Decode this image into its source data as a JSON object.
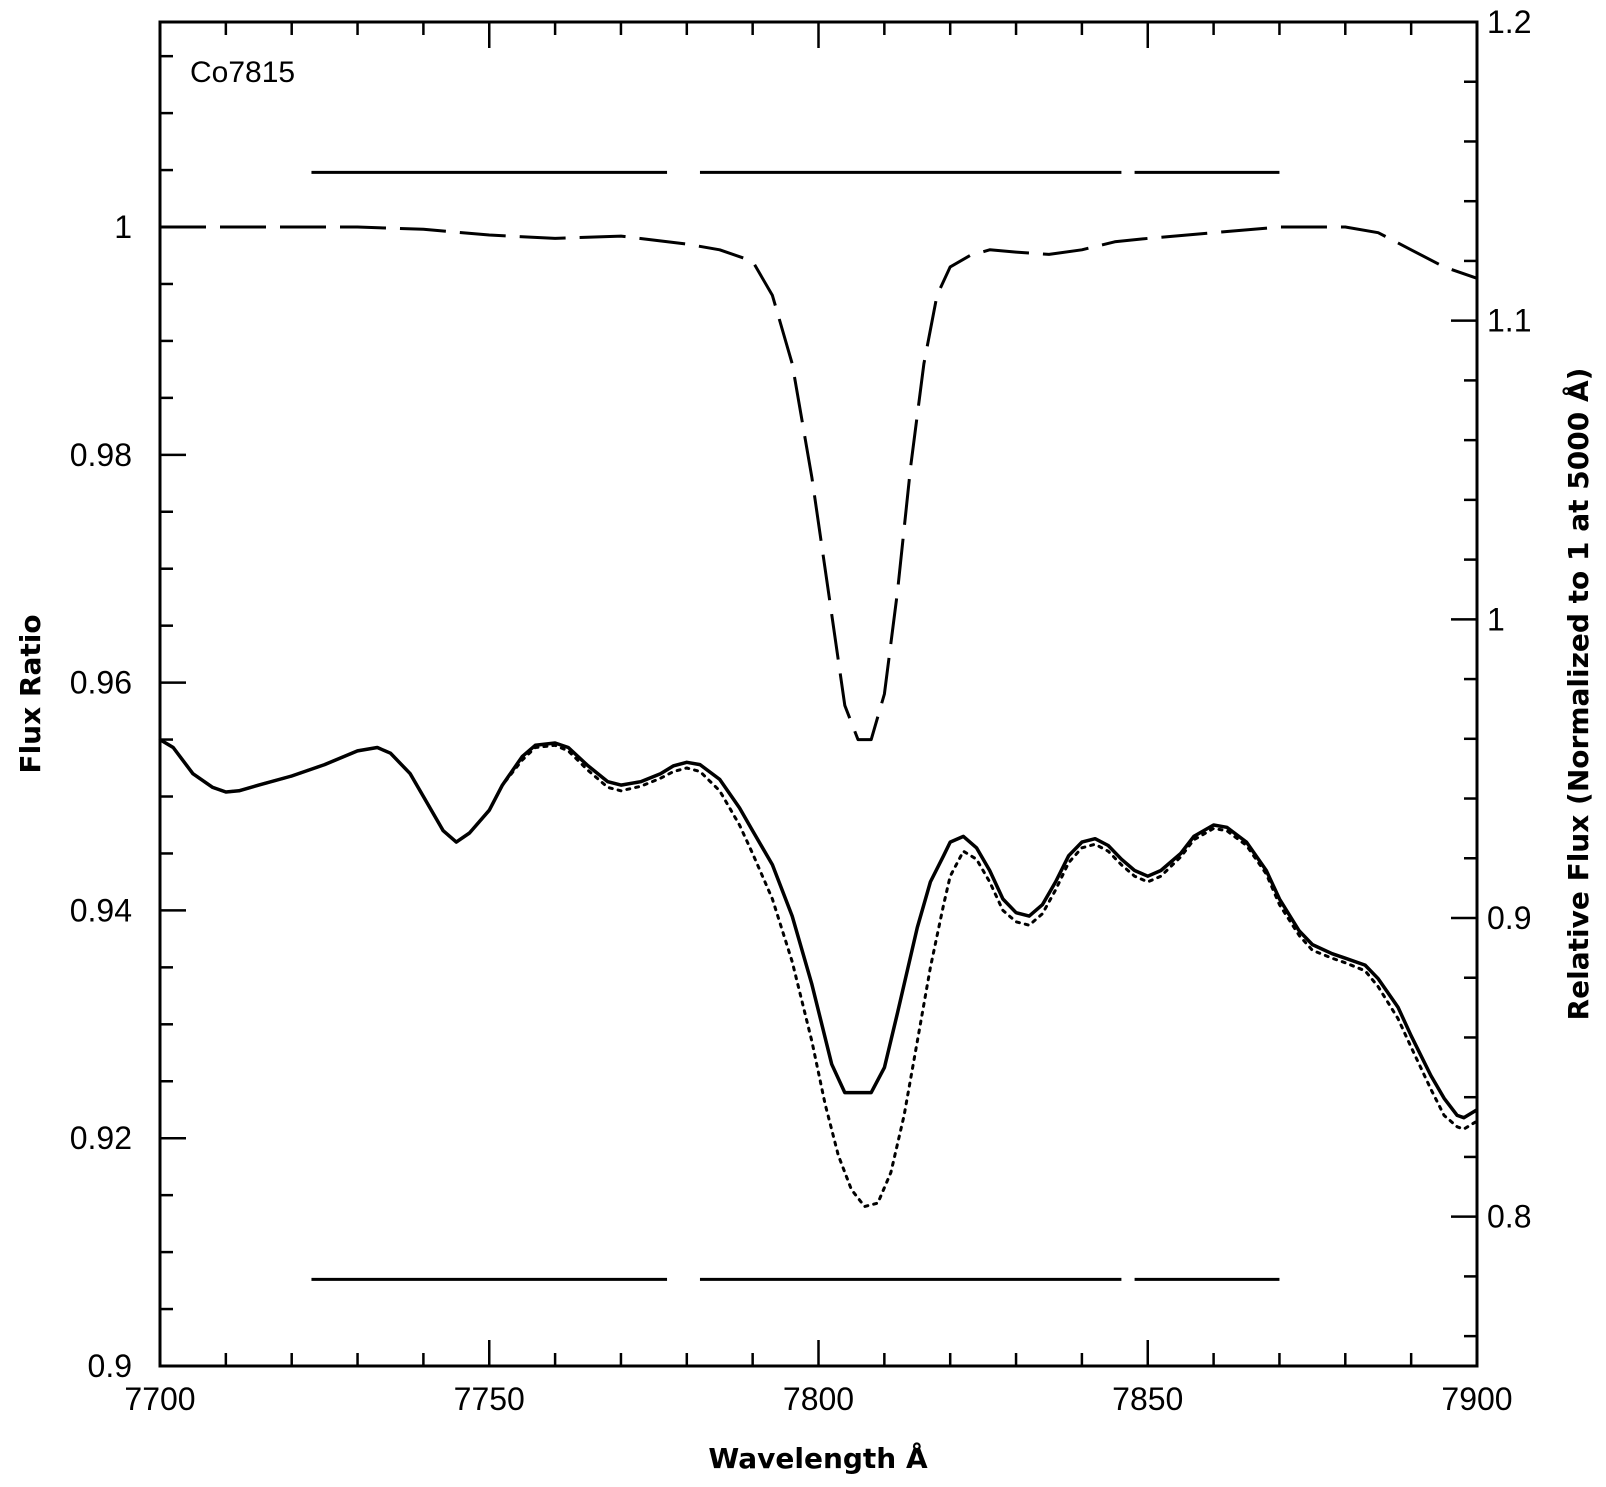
{
  "chart_data": {
    "type": "line",
    "annotation": "Co7815",
    "xlabel": "Wavelength Å",
    "ylabel": "Flux Ratio",
    "y2label": "Relative Flux (Normalized to 1 at 5000 Å)",
    "xlim": [
      7700,
      7900
    ],
    "ylim": [
      0.9,
      1.018
    ],
    "y2lim": [
      0.75,
      1.2
    ],
    "xticks": [
      7700,
      7750,
      7800,
      7850,
      7900
    ],
    "xtick_labels": [
      "7700",
      "7750",
      "7800",
      "7850",
      "7900"
    ],
    "yticks": [
      0.9,
      0.92,
      0.94,
      0.96,
      0.98,
      1.0
    ],
    "ytick_labels": [
      "0.9",
      "0.92",
      "0.94",
      "0.96",
      "0.98",
      "1"
    ],
    "y2ticks": [
      0.8,
      0.9,
      1.0,
      1.1,
      1.2
    ],
    "y2tick_labels": [
      "0.8",
      "0.9",
      "1",
      "1.1",
      "1.2"
    ],
    "grid": false,
    "series": [
      {
        "style": "dashed",
        "axis": "left",
        "x": [
          7700,
          7710,
          7720,
          7730,
          7740,
          7750,
          7760,
          7770,
          7780,
          7785,
          7790,
          7793,
          7796,
          7799,
          7802,
          7804,
          7806,
          7808,
          7810,
          7812,
          7814,
          7816,
          7818,
          7820,
          7823,
          7826,
          7830,
          7835,
          7840,
          7845,
          7850,
          7860,
          7870,
          7880,
          7885,
          7890,
          7895,
          7900
        ],
        "values": [
          1.0,
          1.0,
          1.0,
          1.0,
          0.9998,
          0.9993,
          0.999,
          0.9992,
          0.9985,
          0.998,
          0.997,
          0.994,
          0.988,
          0.978,
          0.966,
          0.958,
          0.955,
          0.955,
          0.959,
          0.968,
          0.979,
          0.988,
          0.994,
          0.9965,
          0.9975,
          0.998,
          0.9978,
          0.9976,
          0.998,
          0.9987,
          0.999,
          0.9995,
          1.0,
          1.0,
          0.9995,
          0.998,
          0.9965,
          0.9955
        ]
      },
      {
        "style": "solid",
        "axis": "left",
        "x": [
          7700,
          7702,
          7705,
          7708,
          7710,
          7712,
          7715,
          7720,
          7725,
          7730,
          7733,
          7735,
          7738,
          7740,
          7743,
          7745,
          7747,
          7750,
          7752,
          7755,
          7757,
          7760,
          7762,
          7765,
          7768,
          7770,
          7773,
          7776,
          7778,
          7780,
          7782,
          7785,
          7788,
          7790,
          7793,
          7796,
          7799,
          7802,
          7804,
          7806,
          7808,
          7810,
          7812,
          7815,
          7817,
          7819,
          7820,
          7822,
          7824,
          7826,
          7828,
          7830,
          7832,
          7834,
          7836,
          7838,
          7840,
          7842,
          7844,
          7846,
          7848,
          7850,
          7852,
          7855,
          7857,
          7860,
          7862,
          7865,
          7868,
          7870,
          7873,
          7875,
          7878,
          7880,
          7883,
          7885,
          7888,
          7890,
          7893,
          7895,
          7897,
          7898,
          7900
        ],
        "values": [
          0.955,
          0.9543,
          0.952,
          0.9508,
          0.9504,
          0.9505,
          0.951,
          0.9518,
          0.9528,
          0.954,
          0.9543,
          0.9538,
          0.952,
          0.95,
          0.947,
          0.946,
          0.9468,
          0.9488,
          0.951,
          0.9535,
          0.9545,
          0.9547,
          0.9543,
          0.9527,
          0.9513,
          0.951,
          0.9513,
          0.952,
          0.9527,
          0.953,
          0.9528,
          0.9515,
          0.949,
          0.947,
          0.944,
          0.9395,
          0.9335,
          0.9265,
          0.924,
          0.924,
          0.924,
          0.9262,
          0.931,
          0.9385,
          0.9425,
          0.9448,
          0.946,
          0.9465,
          0.9455,
          0.9435,
          0.941,
          0.9398,
          0.9395,
          0.9405,
          0.9425,
          0.9448,
          0.946,
          0.9463,
          0.9457,
          0.9445,
          0.9435,
          0.943,
          0.9435,
          0.945,
          0.9465,
          0.9475,
          0.9473,
          0.946,
          0.9435,
          0.941,
          0.9382,
          0.937,
          0.9362,
          0.9358,
          0.9352,
          0.934,
          0.9315,
          0.929,
          0.9255,
          0.9235,
          0.922,
          0.9218,
          0.9225
        ]
      },
      {
        "style": "dotted",
        "axis": "left",
        "x": [
          7700,
          7702,
          7705,
          7708,
          7710,
          7712,
          7715,
          7720,
          7725,
          7730,
          7733,
          7735,
          7738,
          7740,
          7743,
          7745,
          7747,
          7750,
          7752,
          7755,
          7757,
          7760,
          7762,
          7765,
          7768,
          7770,
          7773,
          7776,
          7778,
          7780,
          7782,
          7785,
          7788,
          7790,
          7793,
          7796,
          7799,
          7801,
          7803,
          7805,
          7807,
          7809,
          7811,
          7813,
          7815,
          7817,
          7819,
          7820,
          7822,
          7824,
          7826,
          7828,
          7830,
          7832,
          7834,
          7836,
          7838,
          7840,
          7842,
          7844,
          7846,
          7848,
          7850,
          7852,
          7855,
          7857,
          7860,
          7862,
          7865,
          7868,
          7870,
          7873,
          7875,
          7878,
          7880,
          7883,
          7885,
          7888,
          7890,
          7893,
          7895,
          7897,
          7898,
          7900
        ],
        "values": [
          0.955,
          0.9543,
          0.952,
          0.9508,
          0.9504,
          0.9505,
          0.951,
          0.9518,
          0.9528,
          0.954,
          0.9543,
          0.9538,
          0.952,
          0.95,
          0.947,
          0.946,
          0.9468,
          0.9488,
          0.951,
          0.9532,
          0.9543,
          0.9545,
          0.954,
          0.9523,
          0.9508,
          0.9505,
          0.9509,
          0.9516,
          0.9522,
          0.9525,
          0.9522,
          0.9505,
          0.9475,
          0.945,
          0.941,
          0.9355,
          0.9285,
          0.923,
          0.9185,
          0.9155,
          0.914,
          0.9143,
          0.917,
          0.922,
          0.9285,
          0.935,
          0.9405,
          0.943,
          0.9452,
          0.9445,
          0.9425,
          0.94,
          0.939,
          0.9387,
          0.9397,
          0.9418,
          0.9442,
          0.9455,
          0.9458,
          0.9452,
          0.944,
          0.943,
          0.9425,
          0.943,
          0.9447,
          0.9462,
          0.9472,
          0.947,
          0.9457,
          0.9432,
          0.9405,
          0.9378,
          0.9365,
          0.9358,
          0.9354,
          0.9347,
          0.9333,
          0.9305,
          0.928,
          0.9243,
          0.922,
          0.921,
          0.9208,
          0.9215
        ]
      }
    ],
    "bands_top": [
      [
        7723,
        7777
      ],
      [
        7782,
        7846
      ],
      [
        7848,
        7870
      ]
    ],
    "bands_bottom": [
      [
        7723,
        7777
      ],
      [
        7782,
        7846
      ],
      [
        7848,
        7870
      ]
    ],
    "bands_top_y": 1.0048,
    "bands_bottom_y": 0.9076
  }
}
